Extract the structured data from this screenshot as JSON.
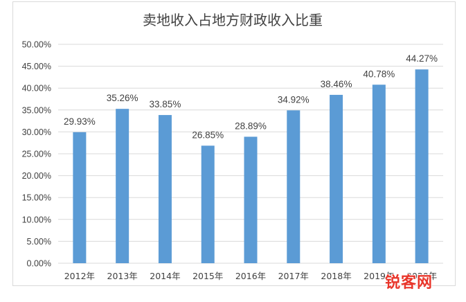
{
  "chart_data": {
    "type": "bar",
    "title": "卖地收入占地方财政收入比重",
    "xlabel": "",
    "ylabel": "",
    "categories": [
      "2012年",
      "2013年",
      "2014年",
      "2015年",
      "2016年",
      "2017年",
      "2018年",
      "2019年",
      "2020年"
    ],
    "values": [
      29.93,
      35.26,
      33.85,
      26.85,
      28.89,
      34.92,
      38.46,
      40.78,
      44.27
    ],
    "value_labels": [
      "29.93%",
      "35.26%",
      "33.85%",
      "26.85%",
      "28.89%",
      "34.92%",
      "38.46%",
      "40.78%",
      "44.27%"
    ],
    "ylim": [
      0,
      50
    ],
    "yticks": [
      "0.00%",
      "5.00%",
      "10.00%",
      "15.00%",
      "20.00%",
      "25.00%",
      "30.00%",
      "35.00%",
      "40.00%",
      "45.00%",
      "50.00%"
    ],
    "grid": true,
    "legend": "none",
    "bar_color": "#5b9bd5",
    "grid_color": "#d9d9d9"
  },
  "watermark": {
    "text": "锐客网",
    "color": "#e8352a"
  }
}
